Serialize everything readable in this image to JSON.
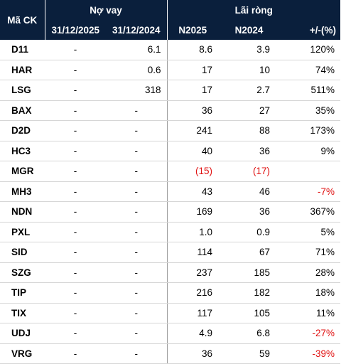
{
  "header": {
    "col_code": "Mã CK",
    "group_debt": "Nợ vay",
    "group_profit": "Lãi ròng",
    "debt_2025": "31/12/2025",
    "debt_2024": "31/12/2024",
    "profit_2025": "N2025",
    "profit_2024": "N2024",
    "change": "+/-(%)"
  },
  "colors": {
    "header_bg": "#0a1f3c",
    "negative": "#e01010"
  },
  "rows": [
    {
      "code": "D11",
      "debt_2025": "-",
      "debt_2024": "6.1",
      "profit_2025": "8.6",
      "profit_2024": "3.9",
      "change": "120%"
    },
    {
      "code": "HAR",
      "debt_2025": "-",
      "debt_2024": "0.6",
      "profit_2025": "17",
      "profit_2024": "10",
      "change": "74%"
    },
    {
      "code": "LSG",
      "debt_2025": "-",
      "debt_2024": "318",
      "profit_2025": "17",
      "profit_2024": "2.7",
      "change": "511%"
    },
    {
      "code": "BAX",
      "debt_2025": "-",
      "debt_2024": "-",
      "profit_2025": "36",
      "profit_2024": "27",
      "change": "35%"
    },
    {
      "code": "D2D",
      "debt_2025": "-",
      "debt_2024": "-",
      "profit_2025": "241",
      "profit_2024": "88",
      "change": "173%"
    },
    {
      "code": "HC3",
      "debt_2025": "-",
      "debt_2024": "-",
      "profit_2025": "40",
      "profit_2024": "36",
      "change": "9%"
    },
    {
      "code": "MGR",
      "debt_2025": "-",
      "debt_2024": "-",
      "profit_2025": "(15)",
      "profit_2024": "(17)",
      "change": ""
    },
    {
      "code": "MH3",
      "debt_2025": "-",
      "debt_2024": "-",
      "profit_2025": "43",
      "profit_2024": "46",
      "change": "-7%"
    },
    {
      "code": "NDN",
      "debt_2025": "-",
      "debt_2024": "-",
      "profit_2025": "169",
      "profit_2024": "36",
      "change": "367%"
    },
    {
      "code": "PXL",
      "debt_2025": "-",
      "debt_2024": "-",
      "profit_2025": "1.0",
      "profit_2024": "0.9",
      "change": "5%"
    },
    {
      "code": "SID",
      "debt_2025": "-",
      "debt_2024": "-",
      "profit_2025": "114",
      "profit_2024": "67",
      "change": "71%"
    },
    {
      "code": "SZG",
      "debt_2025": "-",
      "debt_2024": "-",
      "profit_2025": "237",
      "profit_2024": "185",
      "change": "28%"
    },
    {
      "code": "TIP",
      "debt_2025": "-",
      "debt_2024": "-",
      "profit_2025": "216",
      "profit_2024": "182",
      "change": "18%"
    },
    {
      "code": "TIX",
      "debt_2025": "-",
      "debt_2024": "-",
      "profit_2025": "117",
      "profit_2024": "105",
      "change": "11%"
    },
    {
      "code": "UDJ",
      "debt_2025": "-",
      "debt_2024": "-",
      "profit_2025": "4.9",
      "profit_2024": "6.8",
      "change": "-27%"
    },
    {
      "code": "VRG",
      "debt_2025": "-",
      "debt_2024": "-",
      "profit_2025": "36",
      "profit_2024": "59",
      "change": "-39%"
    }
  ]
}
